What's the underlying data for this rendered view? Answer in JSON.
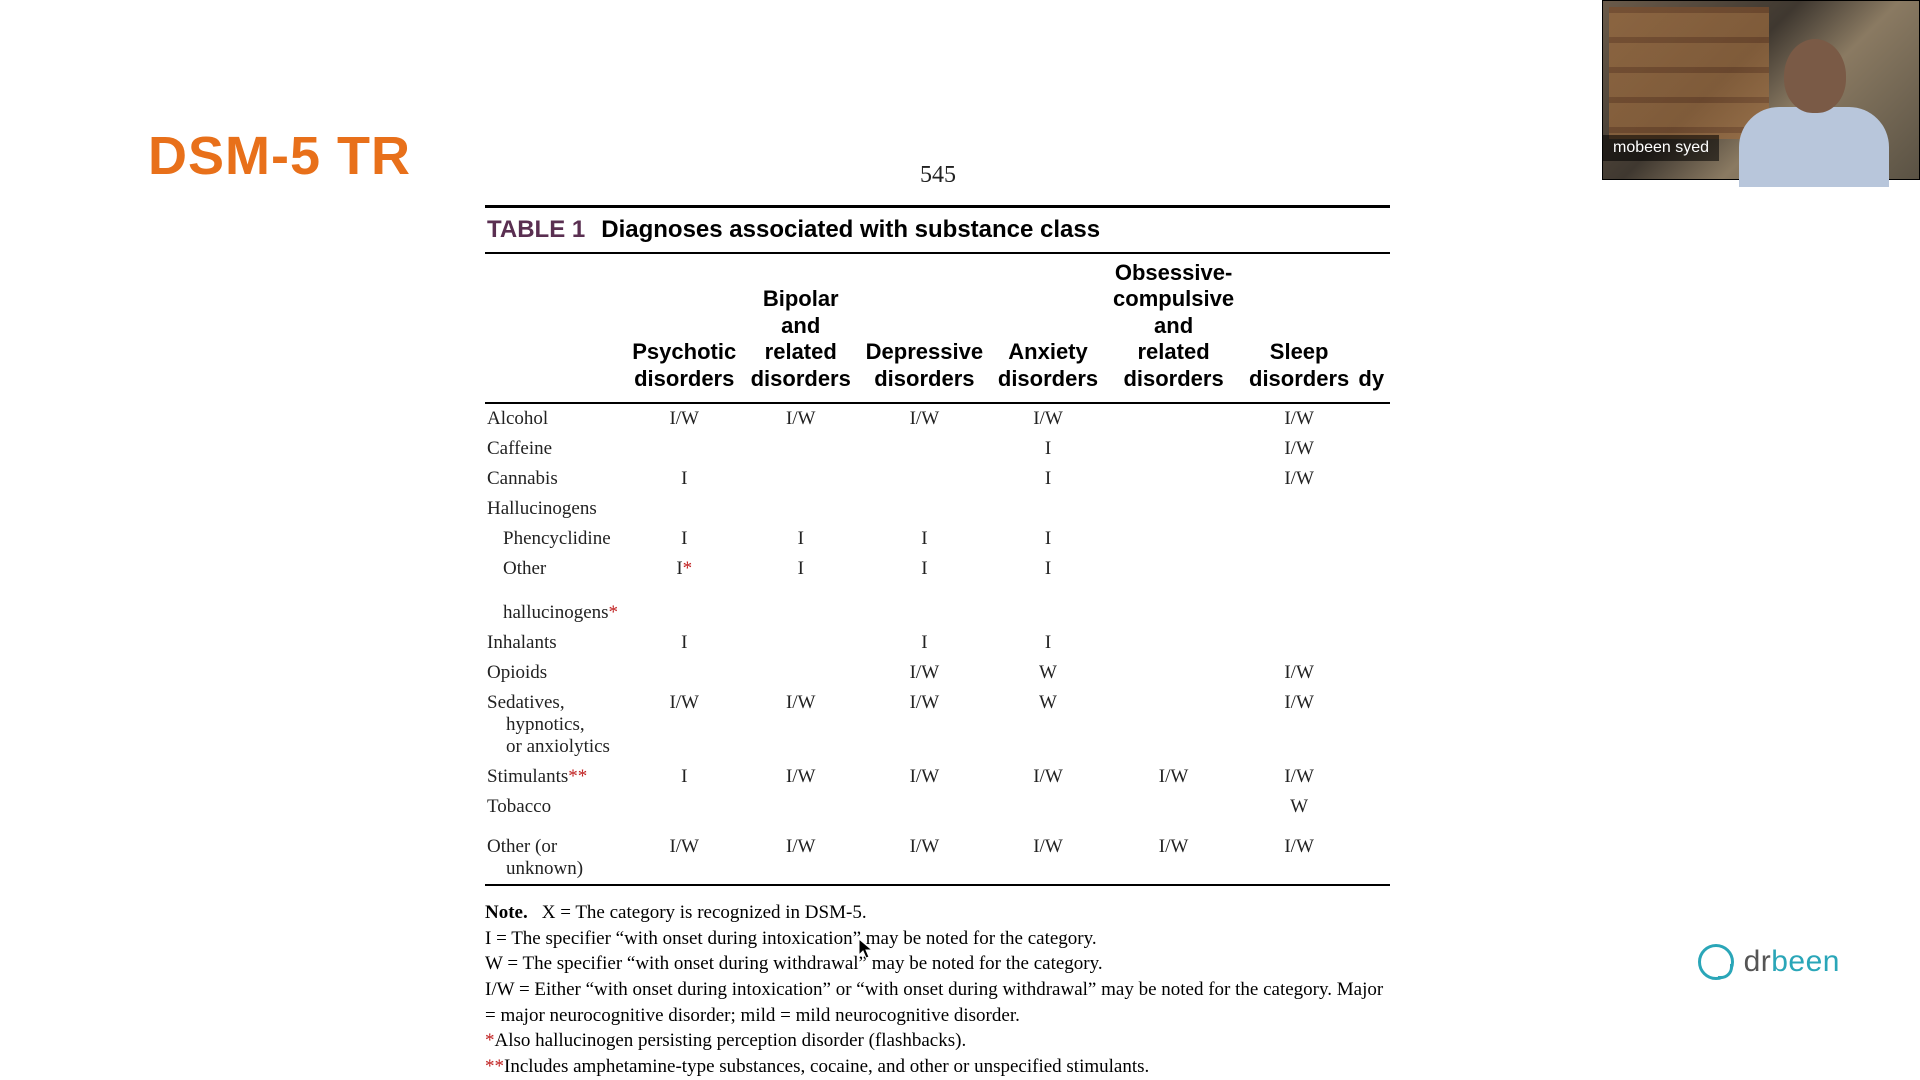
{
  "slide": {
    "title": "DSM-5 TR",
    "title_color": "#e8701a",
    "page_number": "545"
  },
  "table": {
    "label": "TABLE 1",
    "caption": "Diagnoses associated with substance class",
    "columns": [
      "Psychotic disorders",
      "Bipolar and related disorders",
      "Depressive disorders",
      "Anxiety disorders",
      "Obsessive-compulsive and related disorders",
      "Sleep disorders",
      "dy"
    ],
    "rows": [
      {
        "label": "Alcohol",
        "cells": [
          "I/W",
          "I/W",
          "I/W",
          "I/W",
          "",
          "I/W",
          ""
        ]
      },
      {
        "label": "Caffeine",
        "cells": [
          "",
          "",
          "",
          "I",
          "",
          "I/W",
          ""
        ]
      },
      {
        "label": "Cannabis",
        "cells": [
          "I",
          "",
          "",
          "I",
          "",
          "I/W",
          ""
        ]
      },
      {
        "label": "Hallucinogens",
        "group": true,
        "cells": [
          "",
          "",
          "",
          "",
          "",
          "",
          ""
        ]
      },
      {
        "label": "Phencyclidine",
        "indent": true,
        "cells": [
          "I",
          "I",
          "I",
          "I",
          "",
          "",
          ""
        ]
      },
      {
        "label": "Other hallucinogens",
        "indent": true,
        "ast": "*",
        "cells": [
          "I*",
          "I",
          "I",
          "I",
          "",
          "",
          ""
        ]
      },
      {
        "label": "Inhalants",
        "cells": [
          "I",
          "",
          "I",
          "I",
          "",
          "",
          ""
        ]
      },
      {
        "label": "Opioids",
        "cells": [
          "",
          "",
          "I/W",
          "W",
          "",
          "I/W",
          ""
        ]
      },
      {
        "label": "Sedatives, hypnotics, or anxiolytics",
        "cells": [
          "I/W",
          "I/W",
          "I/W",
          "W",
          "",
          "I/W",
          ""
        ]
      },
      {
        "label": "Stimulants",
        "ast": "**",
        "cells": [
          "I",
          "I/W",
          "I/W",
          "I/W",
          "I/W",
          "I/W",
          ""
        ]
      },
      {
        "label": "Tobacco",
        "cells": [
          "",
          "",
          "",
          "",
          "",
          "W",
          ""
        ]
      },
      {
        "label": "Other (or unknown)",
        "cells": [
          "I/W",
          "I/W",
          "I/W",
          "I/W",
          "I/W",
          "I/W",
          ""
        ],
        "pad_top": true
      }
    ]
  },
  "notes": {
    "label": "Note.",
    "lines": [
      "X = The category is recognized in DSM-5.",
      "I = The specifier “with onset during intoxication” may be noted for the category.",
      "W = The specifier “with onset during withdrawal” may be noted for the category.",
      "I/W = Either “with onset during intoxication” or “with onset during withdrawal” may be noted for the category. Major = major neurocognitive disorder; mild = mild neurocognitive disorder."
    ],
    "star1": "*Also hallucinogen persisting perception disorder (flashbacks).",
    "star2": "**Includes amphetamine-type substances, cocaine, and other or unspecified stimulants."
  },
  "webcam": {
    "name": "mobeen syed"
  },
  "logo": {
    "prefix": "dr",
    "suffix": "been",
    "color": "#2aa6b8"
  }
}
